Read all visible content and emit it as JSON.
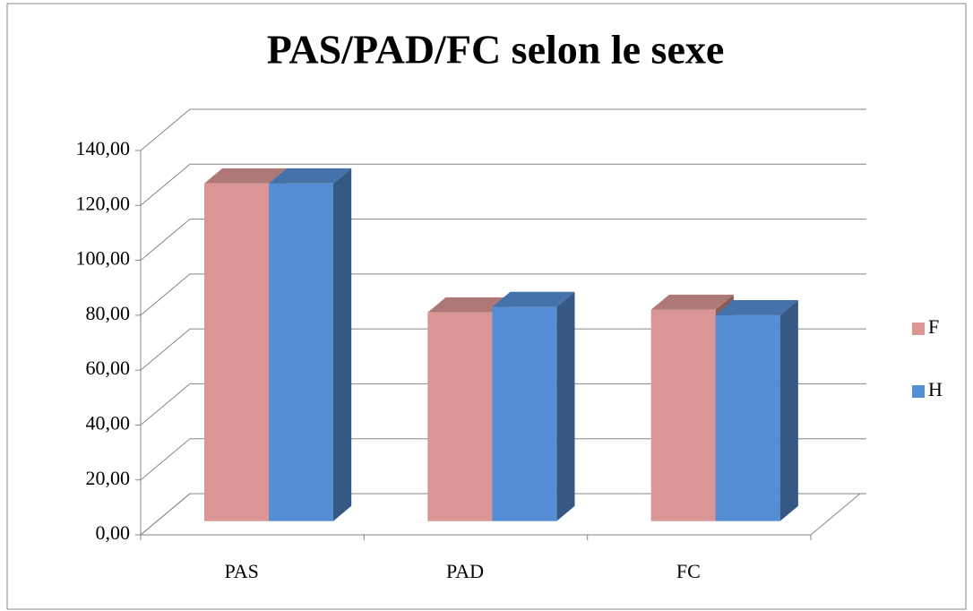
{
  "chart_data": {
    "type": "bar",
    "title": "PAS/PAD/FC selon le sexe",
    "categories": [
      "PAS",
      "PAD",
      "FC"
    ],
    "series": [
      {
        "name": "F",
        "color": "#d99694",
        "values": [
          123,
          76,
          77
        ]
      },
      {
        "name": "H",
        "color": "#558ed5",
        "values": [
          123,
          78,
          75
        ]
      }
    ],
    "ylim": [
      0,
      140
    ],
    "yticks": [
      {
        "value": 0,
        "label": "0,00"
      },
      {
        "value": 20,
        "label": "20,00"
      },
      {
        "value": 40,
        "label": "40,00"
      },
      {
        "value": 60,
        "label": "60,00"
      },
      {
        "value": 80,
        "label": "80,00"
      },
      {
        "value": 100,
        "label": "100,00"
      },
      {
        "value": 120,
        "label": "120,00"
      },
      {
        "value": 140,
        "label": "140,00"
      }
    ],
    "grid": true,
    "legend": "right"
  }
}
